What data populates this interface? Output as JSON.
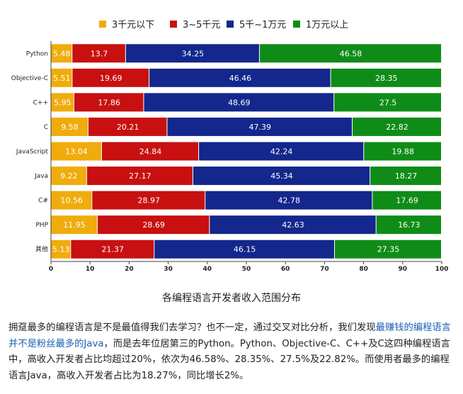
{
  "chart_data": {
    "type": "bar",
    "orientation": "horizontal",
    "stacked": true,
    "categories": [
      "Python",
      "Objective-C",
      "C++",
      "C",
      "JavaScript",
      "Java",
      "C#",
      "PHP",
      "其他"
    ],
    "series": [
      {
        "name": "3千元以下",
        "color": "#f0ac0c",
        "values": [
          5.48,
          5.51,
          5.95,
          9.58,
          13.04,
          9.22,
          10.56,
          11.95,
          5.13
        ]
      },
      {
        "name": "3~5千元",
        "color": "#c81010",
        "values": [
          13.7,
          19.69,
          17.86,
          20.21,
          24.84,
          27.17,
          28.97,
          28.69,
          21.37
        ]
      },
      {
        "name": "5千~1万元",
        "color": "#13278c",
        "values": [
          34.25,
          46.46,
          48.69,
          47.39,
          42.24,
          45.34,
          42.78,
          42.63,
          46.15
        ]
      },
      {
        "name": "1万元以上",
        "color": "#0f8c18",
        "values": [
          46.58,
          28.35,
          27.5,
          22.82,
          19.88,
          18.27,
          17.69,
          16.73,
          27.35
        ]
      }
    ],
    "xlim": [
      0,
      100
    ],
    "xticks": [
      "0",
      "10",
      "20",
      "30",
      "40",
      "50",
      "60",
      "70",
      "80",
      "90",
      "100"
    ],
    "legend_position": "top",
    "grid": false
  },
  "caption": "各编程语言开发者收入范围分布",
  "paragraph": {
    "p1": "拥趸最多的编程语言是不是最值得我们去学习？也不一定，通过交叉对比分析，我们发现",
    "p2": "最赚钱的编程语言并不是粉丝最多的Java",
    "p3": "，而是去年位居第三的Python。Python、Objective-C、C++及C这四种编程语言中，高收入开发者占比均超过20%，依次为46.58%、28.35%、27.5%及22.82%。而使用者最多的编程语言Java，高收入开发者占比为18.27%，同比增长2%。"
  }
}
